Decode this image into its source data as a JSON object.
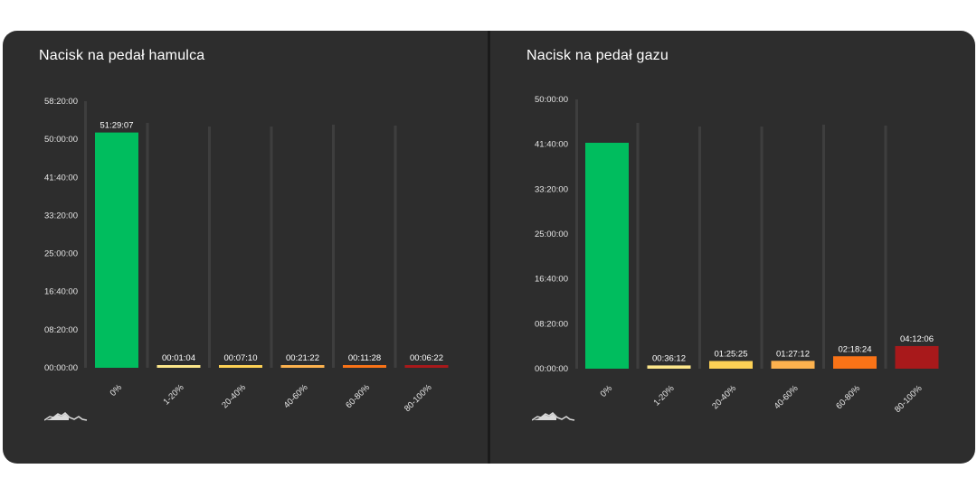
{
  "colors": {
    "background": "#2d2d2d",
    "card_border": "#1a1a1a",
    "text": "#ffffff",
    "axis_text": "#e6e6e6",
    "grid_column": "#3e3e3e",
    "bar_0": "#00bd5e",
    "bar_1_20": "#fce68a",
    "bar_20_40": "#fdd155",
    "bar_40_60": "#fdb24e",
    "bar_60_80": "#f97317",
    "bar_80_100": "#a8191b"
  },
  "panels": [
    {
      "title": "Nacisk na pedał hamulca",
      "logo_icon": "mountain-logo-icon"
    },
    {
      "title": "Nacisk na pedał gazu",
      "logo_icon": "mountain-logo-icon"
    }
  ],
  "chart_data": [
    {
      "type": "bar",
      "title": "Nacisk na pedał hamulca",
      "categories": [
        "0%",
        "1-20%",
        "20-40%",
        "40-60%",
        "60-80%",
        "80-100%"
      ],
      "values_seconds": [
        185347,
        64,
        430,
        1282,
        688,
        382
      ],
      "data_labels": [
        "51:29:07",
        "00:01:04",
        "00:07:10",
        "00:21:22",
        "00:11:28",
        "00:06:22"
      ],
      "yticks": [
        "00:00:00",
        "08:20:00",
        "16:40:00",
        "25:00:00",
        "33:20:00",
        "41:40:00",
        "50:00:00",
        "58:20:00"
      ],
      "ylim_seconds": [
        0,
        210000
      ],
      "bar_colors": [
        "#00bd5e",
        "#fce68a",
        "#fdd155",
        "#fdb24e",
        "#f97317",
        "#a8191b"
      ]
    },
    {
      "type": "bar",
      "title": "Nacisk na pedał gazu",
      "categories": [
        "0%",
        "1-20%",
        "20-40%",
        "40-60%",
        "60-80%",
        "80-100%"
      ],
      "values_seconds": [
        151000,
        2172,
        5125,
        5232,
        8304,
        15126
      ],
      "data_labels": [
        "",
        "00:36:12",
        "01:25:25",
        "01:27:12",
        "02:18:24",
        "04:12:06"
      ],
      "yticks": [
        "00:00:00",
        "08:20:00",
        "16:40:00",
        "25:00:00",
        "33:20:00",
        "41:40:00",
        "50:00:00"
      ],
      "ylim_seconds": [
        0,
        180000
      ],
      "bar_colors": [
        "#00bd5e",
        "#fce68a",
        "#fdd155",
        "#fdb24e",
        "#f97317",
        "#a8191b"
      ]
    }
  ]
}
